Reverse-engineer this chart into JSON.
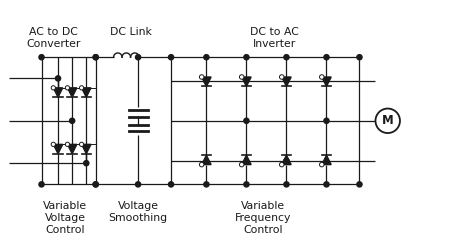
{
  "bg_color": "#ffffff",
  "line_color": "#1a1a1a",
  "title1": "AC to DC\nConverter",
  "title2": "DC Link",
  "title3": "DC to AC\nInverter",
  "label1": "Variable\nVoltage\nControl",
  "label2": "Voltage\nSmoothing",
  "label3": "Variable\nFrequency\nControl",
  "figsize": [
    4.74,
    2.42
  ],
  "dpi": 100
}
